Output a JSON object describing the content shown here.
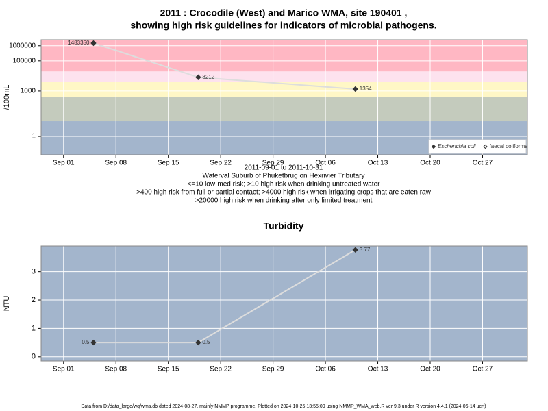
{
  "chart_data": [
    {
      "type": "line",
      "title": [
        "2011 : Crocodile (West) and Marico WMA, site 190401 ,",
        "showing high risk guidelines for indicators of microbial pathogens."
      ],
      "ylabel": "/100mL",
      "xlabel": "2011-09-01 to 2011-10-31",
      "notes": [
        "Waterval Suburb of Phuketbrug on Hexrivier Tributary",
        "<=10 low-med risk; >10 high risk when drinking untreated water",
        ">400 high risk from full or partial contact; >4000 high risk when irrigating crops that are eaten raw",
        ">20000 high risk when drinking after only limited treatment"
      ],
      "x": [
        "2011-09-05",
        "2011-09-19",
        "2011-10-10"
      ],
      "series": [
        {
          "name": "Escherichia coli",
          "color": "#333333",
          "marker": "diamond",
          "values": [
            1483350,
            8212,
            1354
          ]
        },
        {
          "name": "faecal coliforms",
          "color": "#333333",
          "marker": "open-diamond",
          "values": [
            null,
            null,
            null
          ]
        }
      ],
      "line_color": "#dddddd",
      "log_y": true,
      "ylim": [
        0.06,
        2500000
      ],
      "yticks": [
        1,
        1000,
        100000,
        1000000
      ],
      "xlim": [
        "2011-08-29",
        "2011-11-02"
      ],
      "xticks": [
        {
          "value": "2011-09-01",
          "label": "Sep 01"
        },
        {
          "value": "2011-09-08",
          "label": "Sep 08"
        },
        {
          "value": "2011-09-15",
          "label": "Sep 15"
        },
        {
          "value": "2011-09-22",
          "label": "Sep 22"
        },
        {
          "value": "2011-09-29",
          "label": "Sep 29"
        },
        {
          "value": "2011-10-06",
          "label": "Oct 06"
        },
        {
          "value": "2011-10-13",
          "label": "Oct 13"
        },
        {
          "value": "2011-10-20",
          "label": "Oct 20"
        },
        {
          "value": "2011-10-27",
          "label": "Oct 27"
        }
      ],
      "bands": {
        "limits": [
          10,
          400,
          4000,
          20000
        ],
        "colors": [
          "#a3b5cc",
          "#c4cbbd",
          "#fff7c6",
          "#fde2ee",
          "#ffb7c3"
        ]
      },
      "grid": true,
      "legend": "lower right"
    },
    {
      "type": "line",
      "title": [
        "Turbidity"
      ],
      "ylabel": "NTU",
      "x": [
        "2011-09-05",
        "2011-09-19",
        "2011-10-10"
      ],
      "series": [
        {
          "name": "Turbidity",
          "color": "#333333",
          "marker": "diamond",
          "values": [
            0.5,
            0.5,
            3.77
          ]
        }
      ],
      "line_color": "#dddddd",
      "log_y": false,
      "background": "#a3b5cc",
      "ylim": [
        -0.15,
        3.91
      ],
      "yticks": [
        0,
        1,
        2,
        3
      ],
      "xlim": [
        "2011-08-29",
        "2011-11-02"
      ],
      "xticks": [
        {
          "value": "2011-09-01",
          "label": "Sep 01"
        },
        {
          "value": "2011-09-08",
          "label": "Sep 08"
        },
        {
          "value": "2011-09-15",
          "label": "Sep 15"
        },
        {
          "value": "2011-09-22",
          "label": "Sep 22"
        },
        {
          "value": "2011-09-29",
          "label": "Sep 29"
        },
        {
          "value": "2011-10-06",
          "label": "Oct 06"
        },
        {
          "value": "2011-10-13",
          "label": "Oct 13"
        },
        {
          "value": "2011-10-20",
          "label": "Oct 20"
        },
        {
          "value": "2011-10-27",
          "label": "Oct 27"
        }
      ],
      "grid": true
    }
  ],
  "footer": "Data from D:/data_large/wq/wms.db dated 2024-08-27, mainly NMMP programme. Plotted on 2024-10-25 13:55:09 using NMMP_WMA_web.R ver 9.3 under R version 4.4.1 (2024-06-14 ucrt)"
}
